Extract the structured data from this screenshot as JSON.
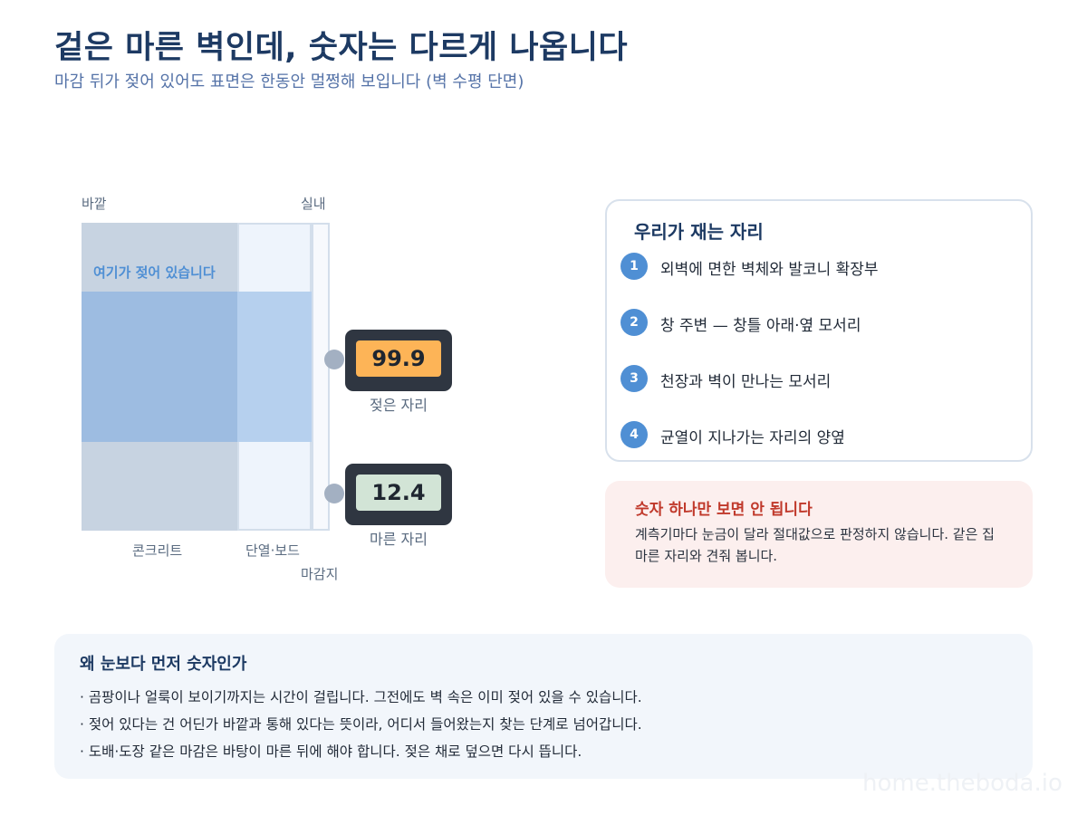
{
  "header": {
    "title": "겉은 마른 벽인데, 숫자는 다르게 나옵니다",
    "subtitle": "마감 뒤가 젖어 있어도 표면은 한동안 멀쩡해 보입니다 (벽 수평 단면)"
  },
  "wall": {
    "outside_label": "바깥",
    "inside_label": "실내",
    "wet_label": "여기가 젖어 있습니다",
    "layers": {
      "concrete": "콘크리트",
      "insulation": "단열·보드",
      "finish": "마감지"
    },
    "colors": {
      "concrete": "#c7d3e1",
      "wet": "#9dbce1",
      "accent": "#4f8fd4"
    }
  },
  "meters": {
    "wet": {
      "value": "99.9",
      "caption": "젖은 자리",
      "screen_color": "#fdb457"
    },
    "dry": {
      "value": "12.4",
      "caption": "마른 자리",
      "screen_color": "#d2e4d6"
    }
  },
  "checklist": {
    "title": "우리가 재는 자리",
    "items": [
      {
        "num": "1",
        "text": "외벽에 면한 벽체와 발코니 확장부"
      },
      {
        "num": "2",
        "text": "창 주변 — 창틀 아래·옆 모서리"
      },
      {
        "num": "3",
        "text": "천장과 벽이 만나는 모서리"
      },
      {
        "num": "4",
        "text": "균열이 지나가는 자리의 양옆"
      }
    ]
  },
  "warning": {
    "title": "숫자 하나만 보면 안 됩니다",
    "body": "계측기마다 눈금이 달라 절대값으로 판정하지 않습니다. 같은 집 마른 자리와 견줘 봅니다.",
    "color": "#c0392b"
  },
  "bottom": {
    "title": "왜 눈보다 먼저 숫자인가",
    "bullets": [
      "· 곰팡이나 얼룩이 보이기까지는 시간이 걸립니다. 그전에도 벽 속은 이미 젖어 있을 수 있습니다.",
      "· 젖어 있다는 건 어딘가 바깥과 통해 있다는 뜻이라, 어디서 들어왔는지 찾는 단계로 넘어갑니다.",
      "· 도배·도장 같은 마감은 바탕이 마른 뒤에 해야 합니다. 젖은 채로 덮으면 다시 뜹니다."
    ]
  },
  "watermark": "home.theboda.io"
}
